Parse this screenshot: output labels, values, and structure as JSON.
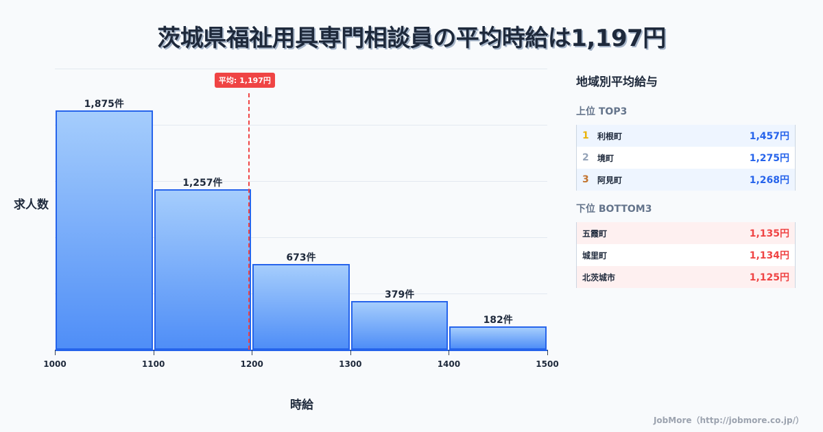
{
  "title": "茨城県福祉用具専門相談員の平均時給は1,197円",
  "chart_data": {
    "type": "bar",
    "title": "茨城県福祉用具専門相談員の平均時給は1,197円",
    "xlabel": "時給",
    "ylabel": "求人数",
    "bins": [
      [
        1000,
        1100
      ],
      [
        1100,
        1200
      ],
      [
        1200,
        1300
      ],
      [
        1300,
        1400
      ],
      [
        1400,
        1500
      ]
    ],
    "categories": [
      "1000-1100",
      "1100-1200",
      "1200-1300",
      "1300-1400",
      "1400-1500"
    ],
    "values": [
      1875,
      1257,
      673,
      379,
      182
    ],
    "value_labels": [
      "1,875件",
      "1,257件",
      "673件",
      "379件",
      "182件"
    ],
    "x_ticks": [
      "1000",
      "1100",
      "1200",
      "1300",
      "1400",
      "1500"
    ],
    "xlim": [
      1000,
      1500
    ],
    "ylim": [
      0,
      2200
    ],
    "grid": true,
    "average": {
      "value": 1197,
      "label": "平均: 1,197円",
      "color": "#ef4444"
    },
    "bar_color": "#2563eb"
  },
  "sidebar": {
    "title": "地域別平均給与",
    "top_title": "上位 TOP3",
    "top": [
      {
        "rank": "1",
        "name": "利根町",
        "value": "1,457円",
        "rank_color": "#eab308"
      },
      {
        "rank": "2",
        "name": "境町",
        "value": "1,275円",
        "rank_color": "#94a3b8"
      },
      {
        "rank": "3",
        "name": "阿見町",
        "value": "1,268円",
        "rank_color": "#c2742f"
      }
    ],
    "bottom_title": "下位 BOTTOM3",
    "bottom": [
      {
        "name": "五霞町",
        "value": "1,135円"
      },
      {
        "name": "城里町",
        "value": "1,134円"
      },
      {
        "name": "北茨城市",
        "value": "1,125円"
      }
    ]
  },
  "footer": "JobMore（http://jobmore.co.jp/）"
}
